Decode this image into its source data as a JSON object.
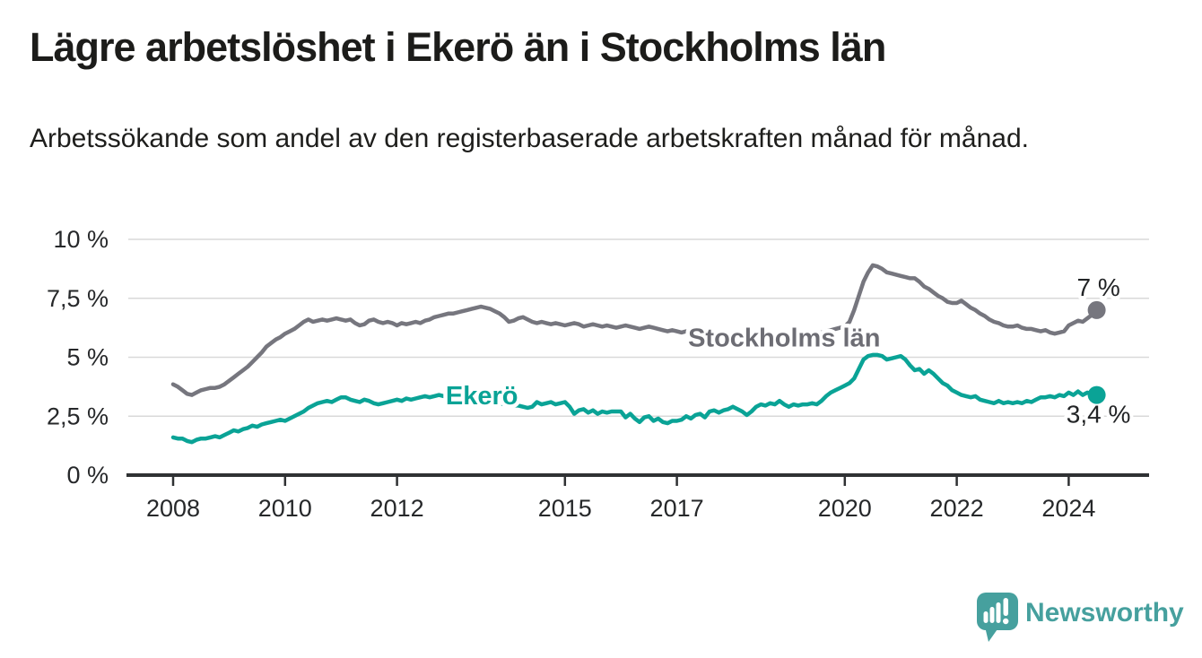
{
  "header": {
    "title": "Lägre arbetslöshet i Ekerö än i Stockholms län",
    "subtitle": "Arbetssökande som andel av den registerbaserade arbetskraften månad för månad."
  },
  "branding": {
    "logo_text": "Newsworthy",
    "logo_icon": "speech-bubble-bar-chart-icon",
    "logo_color": "#46a09e"
  },
  "chart_data": {
    "type": "line",
    "title": "Lägre arbetslöshet i Ekerö än i Stockholms län",
    "subtitle": "Arbetssökande som andel av den registerbaserade arbetskraften månad för månad.",
    "x_unit": "month",
    "x_start": "2008-01",
    "x_end": "2024-07",
    "ylim": [
      0,
      10
    ],
    "grid": true,
    "legend_position": "inline-labels",
    "colors": {
      "axis": "#2f3133",
      "gridline": "#d9d9d9",
      "tick_label": "#26282a",
      "end_label": "#222426"
    },
    "y_ticks": [
      {
        "value": 0,
        "label": "0 %"
      },
      {
        "value": 2.5,
        "label": "2,5 %"
      },
      {
        "value": 5,
        "label": "5 %"
      },
      {
        "value": 7.5,
        "label": "7,5 %"
      },
      {
        "value": 10,
        "label": "10 %"
      }
    ],
    "x_ticks": [
      {
        "year": 2008,
        "label": "2008"
      },
      {
        "year": 2010,
        "label": "2010"
      },
      {
        "year": 2012,
        "label": "2012"
      },
      {
        "year": 2015,
        "label": "2015"
      },
      {
        "year": 2017,
        "label": "2017"
      },
      {
        "year": 2020,
        "label": "2020"
      },
      {
        "year": 2022,
        "label": "2022"
      },
      {
        "year": 2024,
        "label": "2024"
      }
    ],
    "series": [
      {
        "id": "stockholms-lan",
        "name": "Stockholms län",
        "color": "#76767e",
        "label_color": "#6d6d74",
        "end_label": "7 %",
        "last_value": 7.0,
        "inline_label": {
          "year": 2017.2,
          "value": 5.45
        },
        "values": [
          3.85,
          3.75,
          3.6,
          3.45,
          3.4,
          3.5,
          3.6,
          3.65,
          3.7,
          3.7,
          3.75,
          3.85,
          4.0,
          4.15,
          4.3,
          4.45,
          4.6,
          4.8,
          5.0,
          5.2,
          5.45,
          5.6,
          5.75,
          5.85,
          6.0,
          6.1,
          6.2,
          6.35,
          6.5,
          6.6,
          6.5,
          6.55,
          6.6,
          6.55,
          6.6,
          6.65,
          6.6,
          6.55,
          6.6,
          6.45,
          6.35,
          6.4,
          6.55,
          6.6,
          6.5,
          6.45,
          6.5,
          6.45,
          6.35,
          6.45,
          6.4,
          6.45,
          6.5,
          6.45,
          6.55,
          6.6,
          6.7,
          6.75,
          6.8,
          6.85,
          6.85,
          6.9,
          6.95,
          7.0,
          7.05,
          7.1,
          7.15,
          7.1,
          7.05,
          6.95,
          6.85,
          6.7,
          6.5,
          6.55,
          6.65,
          6.7,
          6.6,
          6.5,
          6.45,
          6.5,
          6.45,
          6.4,
          6.45,
          6.4,
          6.35,
          6.4,
          6.45,
          6.4,
          6.3,
          6.35,
          6.4,
          6.35,
          6.3,
          6.35,
          6.3,
          6.25,
          6.3,
          6.35,
          6.3,
          6.25,
          6.2,
          6.25,
          6.3,
          6.25,
          6.2,
          6.15,
          6.1,
          6.15,
          6.1,
          6.05,
          6.1,
          6.05,
          6.0,
          5.95,
          6.0,
          6.05,
          6.0,
          5.95,
          5.9,
          5.85,
          5.9,
          5.95,
          5.9,
          5.85,
          5.8,
          5.85,
          5.9,
          5.85,
          5.8,
          5.75,
          5.8,
          5.85,
          5.9,
          5.85,
          5.8,
          5.85,
          5.9,
          5.95,
          6.0,
          6.05,
          6.1,
          6.15,
          6.2,
          6.25,
          6.3,
          6.5,
          7.0,
          7.6,
          8.2,
          8.6,
          8.9,
          8.85,
          8.75,
          8.6,
          8.55,
          8.5,
          8.45,
          8.4,
          8.35,
          8.35,
          8.2,
          8.0,
          7.9,
          7.75,
          7.6,
          7.5,
          7.35,
          7.3,
          7.3,
          7.4,
          7.25,
          7.1,
          7.0,
          6.85,
          6.75,
          6.6,
          6.5,
          6.45,
          6.35,
          6.3,
          6.3,
          6.35,
          6.25,
          6.2,
          6.2,
          6.15,
          6.1,
          6.15,
          6.05,
          6.0,
          6.05,
          6.1,
          6.35,
          6.45,
          6.55,
          6.5,
          6.65,
          6.8,
          7.0
        ]
      },
      {
        "id": "ekero",
        "name": "Ekerö",
        "color": "#0aa396",
        "label_color": "#0aa396",
        "end_label": "3,4 %",
        "last_value": 3.4,
        "inline_label": {
          "year": 2012.87,
          "value": 3.0
        },
        "values": [
          1.6,
          1.55,
          1.55,
          1.45,
          1.4,
          1.5,
          1.55,
          1.55,
          1.6,
          1.65,
          1.6,
          1.7,
          1.8,
          1.9,
          1.85,
          1.95,
          2.0,
          2.1,
          2.05,
          2.15,
          2.2,
          2.25,
          2.3,
          2.35,
          2.3,
          2.4,
          2.5,
          2.6,
          2.7,
          2.85,
          2.95,
          3.05,
          3.1,
          3.15,
          3.1,
          3.2,
          3.3,
          3.3,
          3.2,
          3.15,
          3.1,
          3.2,
          3.15,
          3.05,
          3.0,
          3.05,
          3.1,
          3.15,
          3.2,
          3.15,
          3.25,
          3.2,
          3.25,
          3.3,
          3.35,
          3.3,
          3.35,
          3.4,
          3.35,
          3.4,
          3.35,
          3.3,
          3.3,
          3.25,
          3.2,
          3.2,
          3.15,
          3.15,
          3.1,
          3.1,
          3.05,
          3.0,
          3.0,
          2.95,
          2.95,
          2.9,
          2.85,
          2.9,
          3.1,
          3.0,
          3.05,
          3.1,
          3.0,
          3.05,
          3.1,
          2.9,
          2.6,
          2.75,
          2.8,
          2.65,
          2.75,
          2.6,
          2.7,
          2.65,
          2.7,
          2.7,
          2.7,
          2.45,
          2.6,
          2.4,
          2.25,
          2.45,
          2.5,
          2.3,
          2.4,
          2.25,
          2.2,
          2.3,
          2.3,
          2.35,
          2.5,
          2.4,
          2.55,
          2.6,
          2.45,
          2.7,
          2.75,
          2.65,
          2.75,
          2.8,
          2.9,
          2.8,
          2.7,
          2.55,
          2.7,
          2.9,
          3.0,
          2.95,
          3.05,
          3.0,
          3.15,
          3.0,
          2.9,
          3.0,
          2.95,
          3.0,
          3.0,
          3.05,
          3.0,
          3.15,
          3.35,
          3.5,
          3.6,
          3.7,
          3.8,
          3.9,
          4.1,
          4.5,
          4.9,
          5.05,
          5.1,
          5.1,
          5.05,
          4.9,
          4.95,
          5.0,
          5.05,
          4.9,
          4.65,
          4.45,
          4.5,
          4.3,
          4.45,
          4.3,
          4.1,
          3.9,
          3.8,
          3.6,
          3.5,
          3.4,
          3.35,
          3.3,
          3.35,
          3.2,
          3.15,
          3.1,
          3.05,
          3.15,
          3.05,
          3.1,
          3.05,
          3.1,
          3.05,
          3.15,
          3.1,
          3.2,
          3.3,
          3.3,
          3.35,
          3.3,
          3.4,
          3.35,
          3.5,
          3.4,
          3.55,
          3.4,
          3.5,
          3.45,
          3.4
        ]
      }
    ]
  }
}
